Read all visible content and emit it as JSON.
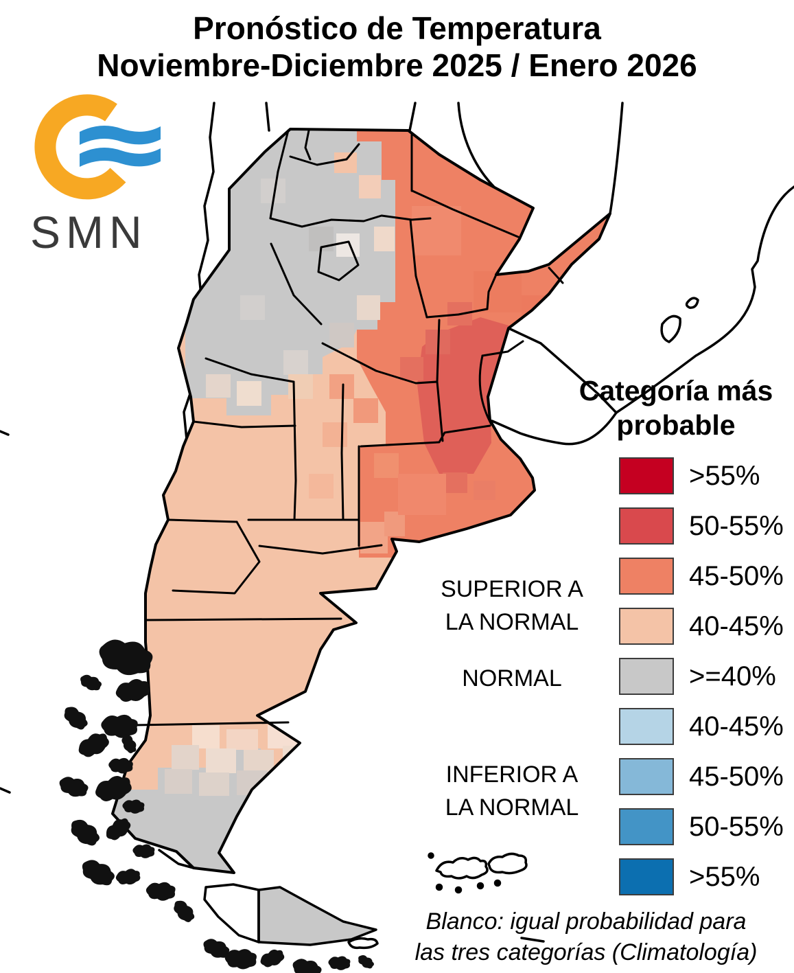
{
  "title": {
    "line1": "Pronóstico de Temperatura",
    "line2": "Noviembre-Diciembre 2025 / Enero 2026"
  },
  "logo": {
    "text": "SMN",
    "ring_color": "#F7A823",
    "wave_color": "#2D90D1"
  },
  "legend": {
    "title_line1": "Categoría más",
    "title_line2": "probable",
    "items": [
      {
        "label": ">55%",
        "color": "#C50021",
        "group": "SUPERIOR A LA NORMAL"
      },
      {
        "label": "50-55%",
        "color": "#D9494D",
        "group": "SUPERIOR A LA NORMAL"
      },
      {
        "label": "45-50%",
        "color": "#EE8164",
        "group": "SUPERIOR A LA NORMAL"
      },
      {
        "label": "40-45%",
        "color": "#F4C3A7",
        "group": "SUPERIOR A LA NORMAL"
      },
      {
        "label": ">=40%",
        "color": "#C8C8C8",
        "group": "NORMAL"
      },
      {
        "label": "40-45%",
        "color": "#B5D4E6",
        "group": "INFERIOR A LA NORMAL"
      },
      {
        "label": "45-50%",
        "color": "#85B8D8",
        "group": "INFERIOR A LA NORMAL"
      },
      {
        "label": "50-55%",
        "color": "#4394C6",
        "group": "INFERIOR A LA NORMAL"
      },
      {
        "label": ">55%",
        "color": "#0C6FB0",
        "group": "INFERIOR A LA NORMAL"
      }
    ]
  },
  "map_labels": {
    "superior_line1": "SUPERIOR A",
    "superior_line2": "LA NORMAL",
    "normal": "NORMAL",
    "inferior_line1": "INFERIOR A",
    "inferior_line2": "LA NORMAL"
  },
  "footnote": {
    "line1": "Blanco: igual probabilidad para",
    "line2": "las tres categorías (Climatología)"
  },
  "colors": {
    "sup_gt55": "#C50021",
    "sup_50_55": "#D9494D",
    "sup_45_50": "#EE8164",
    "sup_40_45": "#F4C3A7",
    "normal_ge40": "#C8C8C8",
    "inf_40_45": "#B5D4E6",
    "inf_45_50": "#85B8D8",
    "inf_50_55": "#4394C6",
    "inf_gt55": "#0C6FB0",
    "map_red": "#DF6058"
  },
  "map": {
    "regions": [
      {
        "area": "northwest (Jujuy-Salta-Catamarca-La Rioja-Tucumán)",
        "category": "NORMAL >=40%"
      },
      {
        "area": "northeast litoral (Formosa-Chaco-Misiones-Corrientes-Santa Fe-Córdoba)",
        "category": "SUPERIOR A LA NORMAL 45-50%"
      },
      {
        "area": "Entre Ríos y sudeste del litoral",
        "category": "SUPERIOR A LA NORMAL 50-55%"
      },
      {
        "area": "Cuyo y centro-oeste (San Juan-Mendoza-San Luis-La Pampa)",
        "category": "SUPERIOR A LA NORMAL 40-45%"
      },
      {
        "area": "Buenos Aires",
        "category": "SUPERIOR A LA NORMAL 45-50%"
      },
      {
        "area": "norte de la Patagonia (Neuquén-Río Negro-norte de Chubut)",
        "category": "SUPERIOR A LA NORMAL 40-45%"
      },
      {
        "area": "sur de la Patagonia (Santa Cruz-Tierra del Fuego)",
        "category": "NORMAL >=40%"
      },
      {
        "area": "blanco (países vecinos / océano)",
        "category": "igual probabilidad para las tres categorías"
      }
    ]
  }
}
